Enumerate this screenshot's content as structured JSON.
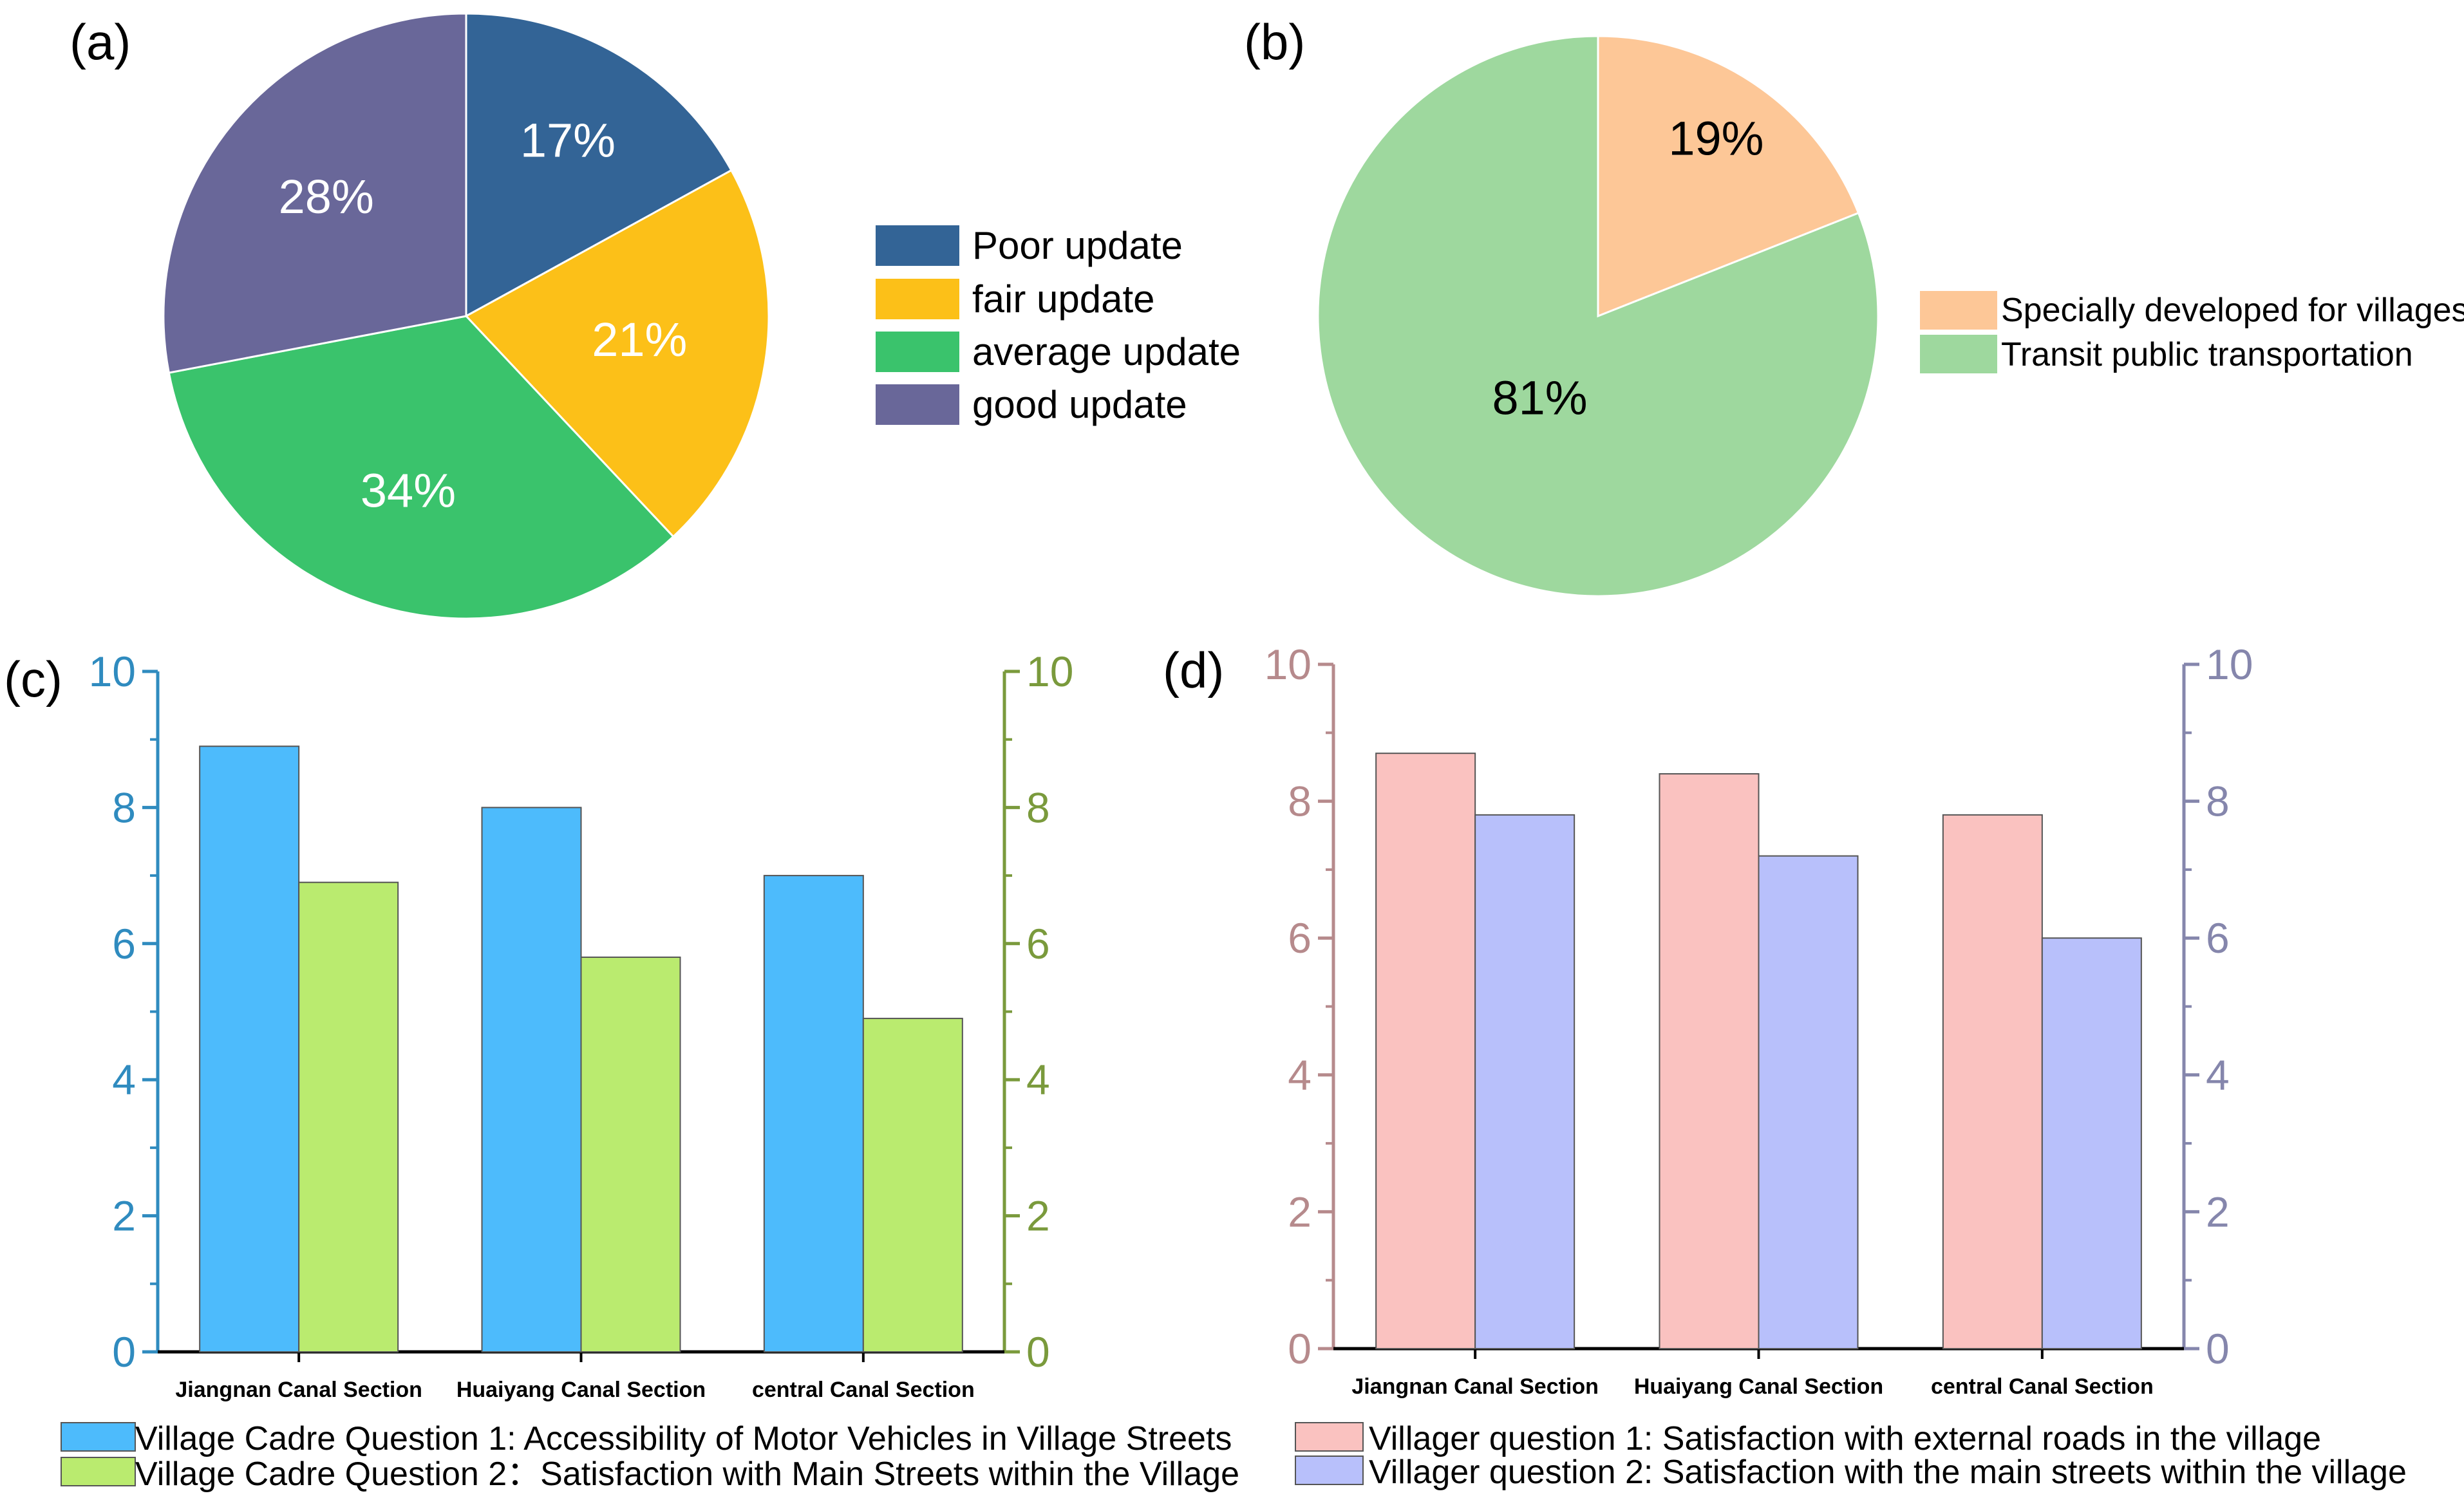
{
  "colors": {
    "poor": "#336496",
    "fair": "#FCC018",
    "average": "#3AC36C",
    "good": "#696799",
    "villages": "#FDC797",
    "transit": "#9ED89E",
    "c_q1": "#4DBBFC",
    "c_q2": "#BAEB6F",
    "c_left_axis": "#2F8BBF",
    "c_right_axis": "#7A9A3C",
    "d_q1": "#FAC2C0",
    "d_q2": "#B8C0FB",
    "d_left_axis": "#B68A8C",
    "d_right_axis": "#8586AC"
  },
  "chart_data": [
    {
      "panel": "(a)",
      "type": "pie",
      "categories": [
        "Poor update",
        "fair update",
        "average update",
        "good update"
      ],
      "values": [
        17,
        21,
        34,
        28
      ],
      "labels": [
        "17%",
        "21%",
        "34%",
        "28%"
      ]
    },
    {
      "panel": "(b)",
      "type": "pie",
      "categories": [
        "Specially developed for villages",
        "Transit public transportation"
      ],
      "values": [
        19,
        81
      ],
      "labels": [
        "19%",
        "81%"
      ]
    },
    {
      "panel": "(c)",
      "type": "bar",
      "categories": [
        "Jiangnan Canal Section",
        "Huaiyang Canal Section",
        "central Canal Section"
      ],
      "series": [
        {
          "name": "Village Cadre Question 1: Accessibility of Motor Vehicles in Village Streets",
          "values": [
            8.9,
            8.0,
            7.0
          ]
        },
        {
          "name": "Village Cadre Question 2：Satisfaction with Main Streets within the Village",
          "values": [
            6.9,
            5.8,
            4.9
          ]
        }
      ],
      "ylim": [
        0,
        10
      ],
      "yticks": [
        "0",
        "2",
        "4",
        "6",
        "8",
        "10"
      ],
      "y2ticks": [
        "0",
        "2",
        "4",
        "6",
        "8",
        "10"
      ]
    },
    {
      "panel": "(d)",
      "type": "bar",
      "categories": [
        "Jiangnan Canal Section",
        "Huaiyang Canal Section",
        "central Canal Section"
      ],
      "series": [
        {
          "name": "Villager question 1: Satisfaction with external roads in the village",
          "values": [
            8.7,
            8.4,
            7.8
          ]
        },
        {
          "name": "Villager question 2: Satisfaction with the main streets within the village",
          "values": [
            7.8,
            7.2,
            6.0
          ]
        }
      ],
      "ylim": [
        0,
        10
      ],
      "yticks": [
        "0",
        "2",
        "4",
        "6",
        "8",
        "10"
      ],
      "y2ticks": [
        "0",
        "2",
        "4",
        "6",
        "8",
        "10"
      ]
    }
  ]
}
